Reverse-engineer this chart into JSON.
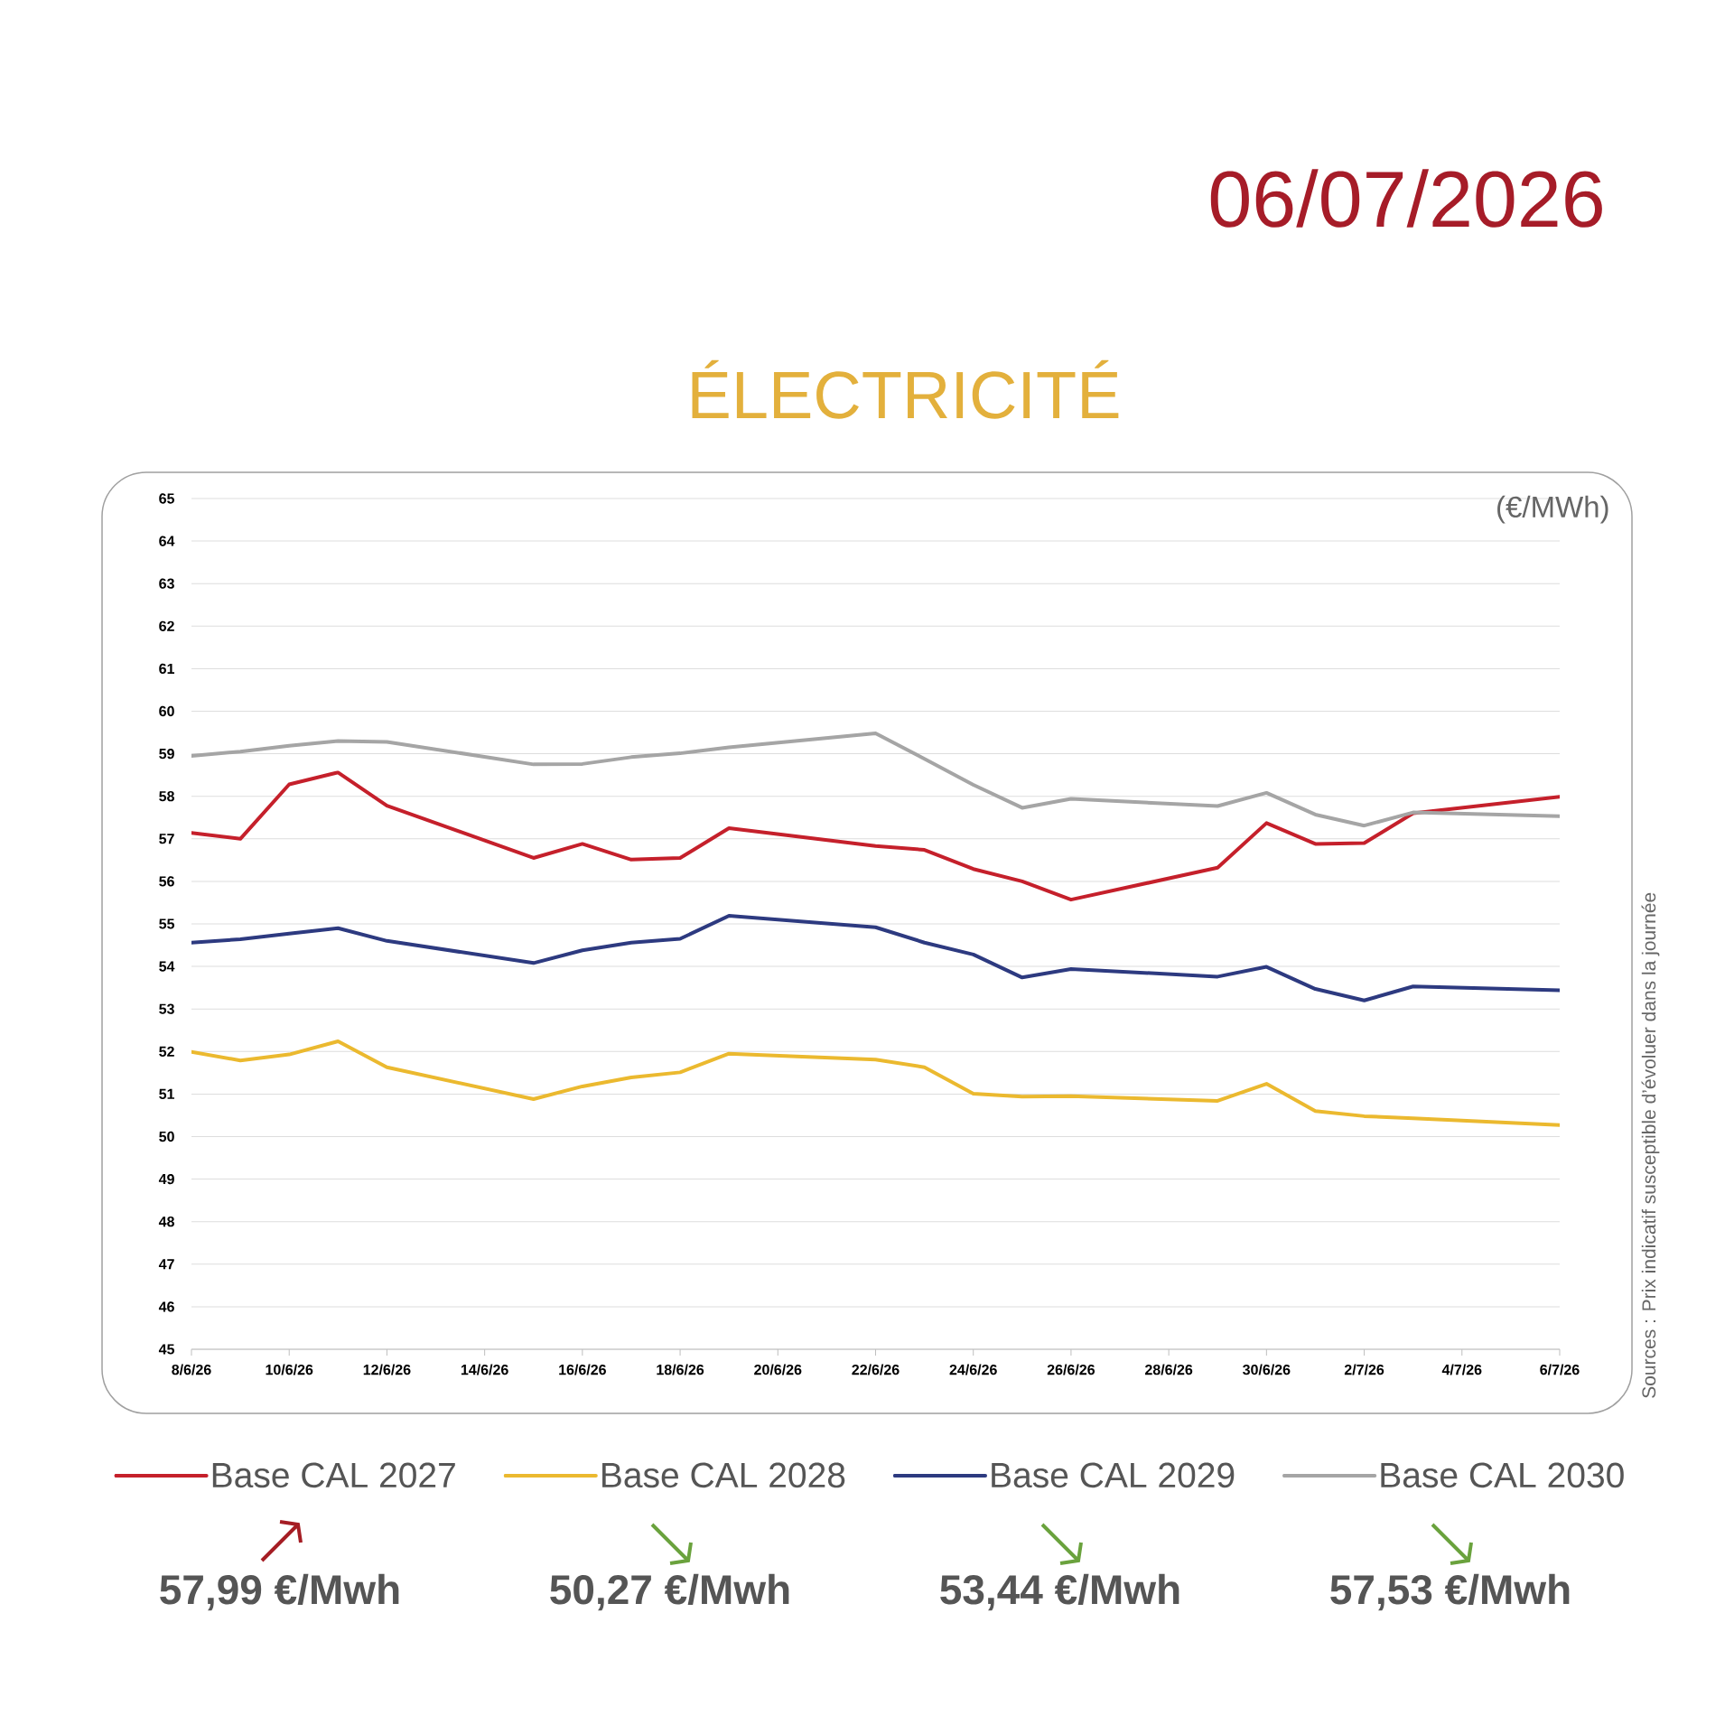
{
  "chart_data": {
    "type": "line",
    "title": "ÉLECTRICITÉ",
    "subtitle": "06/07/2026",
    "ylabel": "(€/MWh)",
    "x": [
      "2026-06-08",
      "2026-06-09",
      "2026-06-10",
      "2026-06-11",
      "2026-06-12",
      "2026-06-15",
      "2026-06-16",
      "2026-06-17",
      "2026-06-18",
      "2026-06-19",
      "2026-06-22",
      "2026-06-23",
      "2026-06-24",
      "2026-06-25",
      "2026-06-26",
      "2026-06-29",
      "2026-06-30",
      "2026-07-01",
      "2026-07-02",
      "2026-07-03",
      "2026-07-06"
    ],
    "series": [
      {
        "name": "Base CAL 2027",
        "color": "#c5202b",
        "values": [
          57.14,
          57.0,
          58.28,
          58.56,
          57.78,
          56.55,
          56.88,
          56.51,
          56.55,
          57.25,
          56.83,
          56.74,
          56.29,
          56.0,
          55.57,
          56.32,
          57.37,
          56.88,
          56.9,
          57.6,
          57.99
        ]
      },
      {
        "name": "Base CAL 2028",
        "color": "#ebb92f",
        "values": [
          51.99,
          51.79,
          51.93,
          52.24,
          51.63,
          50.88,
          51.18,
          51.39,
          51.51,
          51.95,
          51.81,
          51.63,
          51.01,
          50.94,
          50.95,
          50.84,
          51.24,
          50.6,
          50.48,
          50.43,
          50.27
        ]
      },
      {
        "name": "Base CAL 2029",
        "color": "#2d3a80",
        "values": [
          54.56,
          54.64,
          54.77,
          54.9,
          54.6,
          54.08,
          54.38,
          54.56,
          54.65,
          55.19,
          54.92,
          54.56,
          54.28,
          53.74,
          53.94,
          53.76,
          53.99,
          53.47,
          53.2,
          53.53,
          53.44
        ]
      },
      {
        "name": "Base CAL 2030",
        "color": "#a5a5a5",
        "values": [
          58.95,
          59.05,
          59.19,
          59.3,
          59.28,
          58.75,
          58.76,
          58.92,
          59.01,
          59.15,
          59.48,
          58.88,
          58.27,
          57.73,
          57.94,
          57.77,
          58.08,
          57.57,
          57.31,
          57.62,
          57.53
        ]
      }
    ],
    "xlim": [
      "2026-06-08",
      "2026-07-06"
    ],
    "xticks": [
      {
        "value": "2026-06-08",
        "label": "8/6/26"
      },
      {
        "value": "2026-06-10",
        "label": "10/6/26"
      },
      {
        "value": "2026-06-12",
        "label": "12/6/26"
      },
      {
        "value": "2026-06-14",
        "label": "14/6/26"
      },
      {
        "value": "2026-06-16",
        "label": "16/6/26"
      },
      {
        "value": "2026-06-18",
        "label": "18/6/26"
      },
      {
        "value": "2026-06-20",
        "label": "20/6/26"
      },
      {
        "value": "2026-06-22",
        "label": "22/6/26"
      },
      {
        "value": "2026-06-24",
        "label": "24/6/26"
      },
      {
        "value": "2026-06-26",
        "label": "26/6/26"
      },
      {
        "value": "2026-06-28",
        "label": "28/6/26"
      },
      {
        "value": "2026-06-30",
        "label": "30/6/26"
      },
      {
        "value": "2026-07-02",
        "label": "2/7/26"
      },
      {
        "value": "2026-07-04",
        "label": "4/7/26"
      },
      {
        "value": "2026-07-06",
        "label": "6/7/26"
      }
    ],
    "ylim": [
      45,
      65
    ],
    "yticks": [
      45,
      46,
      47,
      48,
      49,
      50,
      51,
      52,
      53,
      54,
      55,
      56,
      57,
      58,
      59,
      60,
      61,
      62,
      63,
      64,
      65
    ],
    "grid": "y",
    "legend": "bottom",
    "line_style": "solid",
    "annotations": [
      "57,99 €/Mwh",
      "50,27 €/Mwh",
      "53,44 €/Mwh",
      "57,53 €/Mwh",
      "Sources : Prix indicatif susceptible d’évoluer dans la journée"
    ]
  }
}
